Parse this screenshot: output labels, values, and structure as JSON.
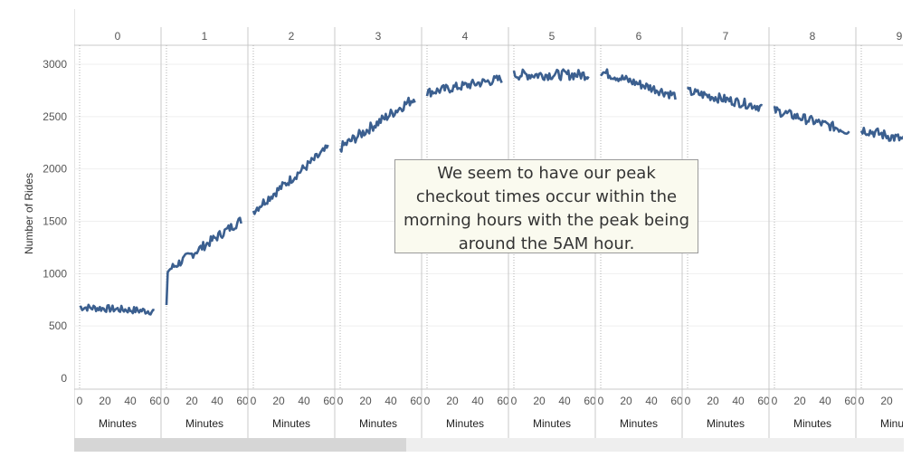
{
  "chart_data": {
    "type": "line",
    "ylabel": "Number of Rides",
    "xlabel": "Minutes",
    "ylim": [
      0,
      3000
    ],
    "yticks": [
      0,
      500,
      1000,
      1500,
      2000,
      2500,
      3000
    ],
    "xticks": [
      "0",
      "20",
      "40",
      "60"
    ],
    "grid": true,
    "color": "#3b5f8f",
    "panels": [
      {
        "header": "0",
        "start": 680,
        "end": 640,
        "noise": 35
      },
      {
        "header": "1",
        "start": 1020,
        "end": 1510,
        "noise": 45,
        "first": 700
      },
      {
        "header": "2",
        "start": 1600,
        "end": 2200,
        "noise": 45
      },
      {
        "header": "3",
        "start": 2200,
        "end": 2680,
        "noise": 50
      },
      {
        "header": "4",
        "start": 2730,
        "end": 2860,
        "noise": 45
      },
      {
        "header": "5",
        "start": 2900,
        "end": 2900,
        "noise": 50
      },
      {
        "header": "6",
        "start": 2930,
        "end": 2700,
        "noise": 45
      },
      {
        "header": "7",
        "start": 2740,
        "end": 2590,
        "noise": 45
      },
      {
        "header": "8",
        "start": 2560,
        "end": 2360,
        "noise": 45
      },
      {
        "header": "9",
        "start": 2380,
        "end": 2200,
        "noise": 50
      }
    ]
  },
  "annotation": "We seem to have our peak checkout times occur within the morning hours with the peak being around the 5AM hour.",
  "scrollbar": {
    "position": 0.0,
    "visible_fraction": 0.4
  }
}
